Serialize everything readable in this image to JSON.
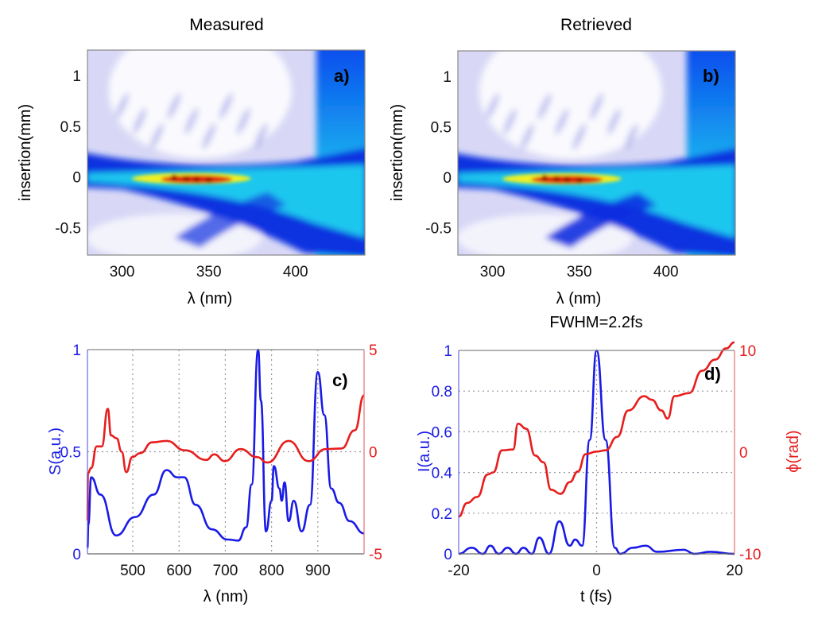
{
  "chart_data": [
    {
      "id": "a",
      "type": "heatmap",
      "title": "Measured",
      "panel_label": "a)",
      "xlabel": "λ (nm)",
      "ylabel": "insertion(mm)",
      "xlim": [
        280,
        440
      ],
      "ylim": [
        -0.77,
        1.25
      ],
      "xticks": [
        300,
        350,
        400
      ],
      "xtick_labels": [
        "300",
        "350",
        "400"
      ],
      "yticks": [
        1,
        0.5,
        0,
        -0.5
      ],
      "ytick_labels": [
        "1",
        "0.5",
        "0",
        "-0.5"
      ],
      "colormap": [
        "#ffffff",
        "#d8d8f6",
        "#1030e0",
        "#20d8f0",
        "#f0f020",
        "#e02010",
        "#a00000"
      ]
    },
    {
      "id": "b",
      "type": "heatmap",
      "title": "Retrieved",
      "panel_label": "b)",
      "xlabel": "λ (nm)",
      "ylabel": "insertion(mm)",
      "xlim": [
        280,
        440
      ],
      "ylim": [
        -0.77,
        1.25
      ],
      "xticks": [
        300,
        350,
        400
      ],
      "xtick_labels": [
        "300",
        "350",
        "400"
      ],
      "yticks": [
        1,
        0.5,
        0,
        -0.5
      ],
      "ytick_labels": [
        "1",
        "0.5",
        "0",
        "-0.5"
      ],
      "colormap": [
        "#ffffff",
        "#d8d8f6",
        "#1030e0",
        "#20d8f0",
        "#f0f020",
        "#e02010",
        "#a00000"
      ]
    },
    {
      "id": "c",
      "type": "line",
      "panel_label": "c)",
      "xlabel": "λ (nm)",
      "ylabel": "S(a.u.)",
      "xlim": [
        402,
        1000
      ],
      "ylim": [
        0,
        1
      ],
      "y2lim": [
        -5,
        5
      ],
      "xticks": [
        500,
        600,
        700,
        800,
        900
      ],
      "xtick_labels": [
        "500",
        "600",
        "700",
        "800",
        "900"
      ],
      "yticks": [
        1,
        0.5,
        0
      ],
      "ytick_labels": [
        "1",
        "0.5",
        "0"
      ],
      "y2ticks": [
        5,
        0,
        -5
      ],
      "y2tick_labels": [
        "5",
        "0",
        "-5"
      ],
      "grid": {
        "x": [
          500,
          600,
          700,
          800,
          900
        ],
        "y": [
          0.5
        ]
      },
      "series": [
        {
          "axis": "left",
          "color": "#1a1ae6",
          "x": [
            402,
            404,
            410,
            430,
            464,
            505,
            545,
            573,
            596,
            611,
            636,
            671,
            705,
            728,
            745,
            757,
            771,
            777,
            788,
            800,
            805,
            817,
            822,
            828,
            837,
            848,
            865,
            883,
            900,
            914,
            929,
            946,
            969,
            1000
          ],
          "y": [
            0.03,
            0.145,
            0.375,
            0.29,
            0.09,
            0.18,
            0.29,
            0.41,
            0.375,
            0.375,
            0.24,
            0.12,
            0.07,
            0.065,
            0.13,
            0.34,
            1.0,
            0.75,
            0.11,
            0.26,
            0.43,
            0.32,
            0.26,
            0.35,
            0.16,
            0.26,
            0.11,
            0.24,
            0.89,
            0.68,
            0.32,
            0.25,
            0.16,
            0.1
          ]
        },
        {
          "axis": "right",
          "color": "#e61e1e",
          "x": [
            402,
            403,
            410,
            422,
            433,
            446,
            453,
            465,
            476,
            486,
            499,
            516,
            542,
            573,
            613,
            659,
            676,
            699,
            733,
            768,
            791,
            837,
            880,
            917,
            951,
            980,
            1000
          ],
          "y": [
            -3.4,
            -1.05,
            -0.8,
            0.26,
            0.26,
            2.1,
            0.8,
            0.66,
            0,
            -1.0,
            -0.26,
            -0.07,
            0.46,
            0.53,
            0.07,
            -0.4,
            -0.13,
            -0.46,
            0.13,
            -0.26,
            -0.53,
            0.53,
            -0.46,
            0.13,
            0.16,
            1.05,
            2.76
          ]
        }
      ]
    },
    {
      "id": "d",
      "type": "line",
      "title": "FWHM=2.2fs",
      "panel_label": "d)",
      "xlabel": "t (fs)",
      "ylabel": "I(a.u.)",
      "y2label": "ϕ(rad)",
      "xlim": [
        -20,
        20
      ],
      "ylim": [
        0,
        1
      ],
      "y2lim": [
        -10,
        10
      ],
      "xticks": [
        -20,
        0,
        20
      ],
      "xtick_labels": [
        "-20",
        "0",
        "20"
      ],
      "yticks": [
        1,
        0.8,
        0.6,
        0.4,
        0.2,
        0
      ],
      "ytick_labels": [
        "1",
        "0.8",
        "0.6",
        "0.4",
        "0.2",
        "0"
      ],
      "y2ticks": [
        10,
        0,
        -10
      ],
      "y2tick_labels": [
        "10",
        "0",
        "-10"
      ],
      "grid": {
        "x": [
          0
        ],
        "y": [
          0.2,
          0.4,
          0.6,
          0.8
        ]
      },
      "series": [
        {
          "axis": "left",
          "color": "#1a1ae6",
          "x": [
            -20,
            -18.1,
            -16.5,
            -15.4,
            -14.2,
            -12.9,
            -11.7,
            -10.6,
            -9.4,
            -8.3,
            -6.9,
            -5.4,
            -3.9,
            -3.1,
            -2.1,
            -1.0,
            0,
            1.3,
            2.65,
            3.4,
            5.3,
            7.1,
            8.8,
            12.6,
            14.2,
            16.5,
            20
          ],
          "y": [
            0,
            0.03,
            0,
            0.04,
            0,
            0.03,
            0,
            0.03,
            0,
            0.08,
            0,
            0.16,
            0.04,
            0.07,
            0.04,
            0.56,
            1.0,
            0.56,
            0.03,
            0,
            0.03,
            0.04,
            0.01,
            0.02,
            0,
            0.01,
            0
          ]
        },
        {
          "axis": "right",
          "color": "#e61e1e",
          "x": [
            -20,
            -18.8,
            -17.3,
            -15.8,
            -15.0,
            -13.7,
            -12.1,
            -11.4,
            -10.2,
            -8.9,
            -7.7,
            -6.6,
            -5.2,
            -3.9,
            -2.7,
            -1.6,
            0,
            1.3,
            3.0,
            4.6,
            6.9,
            8.0,
            9.4,
            10.3,
            11.3,
            13.4,
            15.3,
            17.2,
            18.8,
            20
          ],
          "y": [
            -6.35,
            -5.0,
            -4.4,
            -2.2,
            -2.0,
            0.18,
            0.26,
            2.8,
            2.3,
            -0.34,
            -1.0,
            -3.7,
            -4.1,
            -2.95,
            -1.9,
            -0.2,
            0.05,
            0.18,
            1.5,
            4.1,
            5.5,
            5.15,
            4.1,
            3.3,
            5.5,
            5.8,
            8.0,
            9.1,
            10.2,
            10.8
          ]
        }
      ]
    }
  ]
}
